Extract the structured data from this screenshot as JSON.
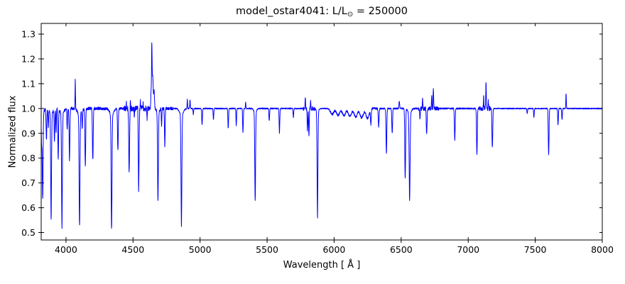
{
  "figure": {
    "title": "model_ostar4041: L/L⊙ = 250000",
    "title_parts": {
      "prefix": "model_ostar4041: L/L",
      "odot": "⊙",
      "suffix": " = 250000"
    }
  },
  "chart_data": {
    "type": "line",
    "title": "model_ostar4041: L/L⊙ = 250000",
    "xlabel": "Wavelength [ Å ]",
    "ylabel": "Normalized flux",
    "xlim": [
      3815,
      8000
    ],
    "ylim": [
      0.47,
      1.343
    ],
    "xticks": [
      4000,
      4500,
      5000,
      5500,
      6000,
      6500,
      7000,
      7500,
      8000
    ],
    "yticks": [
      0.5,
      0.6,
      0.7,
      0.8,
      0.9,
      1.0,
      1.1,
      1.2,
      1.3
    ],
    "grid": false,
    "legend": "none",
    "line_color": "#0000ff",
    "background_color": "#ffffff",
    "continuum": 1.0,
    "series_name": "normalized flux spectrum",
    "absorption_lines_format": "[wavelength_A, core_flux, sigma_A]",
    "absorption_lines": [
      [
        3818,
        0.87,
        2.5
      ],
      [
        3826,
        0.65,
        3
      ],
      [
        3854,
        0.875,
        2.8
      ],
      [
        3868,
        0.93,
        2.2
      ],
      [
        3889,
        0.575,
        3
      ],
      [
        3914,
        0.87,
        2.4
      ],
      [
        3926,
        0.9,
        2.2
      ],
      [
        3942,
        0.8,
        2.6
      ],
      [
        3970,
        0.545,
        3
      ],
      [
        4009,
        0.92,
        2.4
      ],
      [
        4026,
        0.79,
        2.8
      ],
      [
        4101,
        0.55,
        3.2
      ],
      [
        4121,
        0.93,
        2.4
      ],
      [
        4144,
        0.77,
        2.8
      ],
      [
        4200,
        0.77,
        2.8
      ],
      [
        4340,
        0.54,
        3.2
      ],
      [
        4387,
        0.83,
        2.8
      ],
      [
        4471,
        0.74,
        3
      ],
      [
        4511,
        0.95,
        2
      ],
      [
        4542,
        0.675,
        3
      ],
      [
        4605,
        0.96,
        2
      ],
      [
        4686,
        0.645,
        3
      ],
      [
        4713,
        0.93,
        2
      ],
      [
        4737,
        0.84,
        2.4
      ],
      [
        4861,
        0.55,
        3.2
      ],
      [
        4950,
        0.975,
        2
      ],
      [
        5015,
        0.935,
        2.5
      ],
      [
        5100,
        0.955,
        2.4
      ],
      [
        5210,
        0.92,
        2.5
      ],
      [
        5270,
        0.93,
        2.4
      ],
      [
        5320,
        0.905,
        2.5
      ],
      [
        5411,
        0.645,
        3
      ],
      [
        5516,
        0.95,
        2.4
      ],
      [
        5592,
        0.9,
        2.5
      ],
      [
        5696,
        0.965,
        2.4
      ],
      [
        5801,
        0.91,
        2.4
      ],
      [
        5812,
        0.89,
        2.4
      ],
      [
        5876,
        0.575,
        3
      ],
      [
        6274,
        0.94,
        3
      ],
      [
        6332,
        0.925,
        3
      ],
      [
        6390,
        0.82,
        2.8
      ],
      [
        6433,
        0.9,
        2.8
      ],
      [
        6530,
        0.72,
        3
      ],
      [
        6563,
        0.65,
        3.5
      ],
      [
        6640,
        0.96,
        2.4
      ],
      [
        6690,
        0.895,
        3
      ],
      [
        6900,
        0.87,
        2.8
      ],
      [
        7065,
        0.815,
        2.8
      ],
      [
        7180,
        0.845,
        3
      ],
      [
        7440,
        0.98,
        2.4
      ],
      [
        7490,
        0.965,
        2.4
      ],
      [
        7600,
        0.815,
        2.8
      ],
      [
        7670,
        0.935,
        2.4
      ],
      [
        7700,
        0.955,
        2.4
      ]
    ],
    "line_wings_format": "[wavelength_A, wing_flux, sigma_A]",
    "line_wings": [
      [
        3826,
        0.985,
        12
      ],
      [
        3889,
        0.98,
        12
      ],
      [
        3970,
        0.975,
        13
      ],
      [
        4101,
        0.975,
        14
      ],
      [
        4340,
        0.975,
        14
      ],
      [
        4861,
        0.975,
        14
      ],
      [
        5411,
        0.985,
        10
      ],
      [
        4686,
        0.985,
        10
      ],
      [
        5876,
        0.985,
        8
      ],
      [
        6563,
        0.98,
        12
      ]
    ],
    "emission_lines_format": "[wavelength_A, peak_flux, sigma_A]",
    "emission_lines": [
      [
        4069,
        1.115,
        1.8
      ],
      [
        4200,
        1.025,
        1.4
      ],
      [
        4450,
        1.02,
        1.4
      ],
      [
        4480,
        1.03,
        1.4
      ],
      [
        4512,
        1.035,
        1.4
      ],
      [
        4535,
        1.025,
        1.4
      ],
      [
        4555,
        1.03,
        1.4
      ],
      [
        4575,
        1.02,
        1.4
      ],
      [
        4634,
        1.06,
        2
      ],
      [
        4640,
        1.245,
        2.2
      ],
      [
        4647,
        1.13,
        3.5
      ],
      [
        4657,
        1.07,
        3
      ],
      [
        4905,
        1.04,
        1.8
      ],
      [
        4925,
        1.035,
        1.8
      ],
      [
        5340,
        1.025,
        1.8
      ],
      [
        5785,
        1.045,
        1.8
      ],
      [
        5825,
        1.03,
        1.8
      ],
      [
        6486,
        1.03,
        2.4
      ],
      [
        6660,
        1.04,
        1.8
      ],
      [
        6728,
        1.05,
        1.8
      ],
      [
        6740,
        1.085,
        2
      ],
      [
        7115,
        1.055,
        1.8
      ],
      [
        7133,
        1.11,
        2
      ],
      [
        7150,
        1.03,
        1.8
      ],
      [
        7730,
        1.06,
        1.8
      ]
    ],
    "continuum_ripples": {
      "comment": "shallow scalloped undulations between ~5985 and 6260 A",
      "start_A": 5985,
      "spacing_A": 44,
      "count": 7,
      "sigma_A": 12,
      "depths": [
        0.976,
        0.973,
        0.971,
        0.969,
        0.966,
        0.963,
        0.96
      ]
    },
    "noise_bands_format": "[from_A, to_A, amplitude_flux]",
    "noise_bands": [
      [
        3815,
        4300,
        0.006
      ],
      [
        4300,
        4430,
        0.0045
      ],
      [
        4430,
        4620,
        0.011
      ],
      [
        4620,
        4800,
        0.006
      ],
      [
        4800,
        5770,
        0.0025
      ],
      [
        5770,
        5860,
        0.008
      ],
      [
        5860,
        5960,
        0.002
      ],
      [
        5960,
        6350,
        0.0045
      ],
      [
        6350,
        6630,
        0.003
      ],
      [
        6630,
        6780,
        0.008
      ],
      [
        6780,
        7080,
        0.003
      ],
      [
        7080,
        7170,
        0.009
      ],
      [
        7170,
        8000,
        0.0022
      ]
    ]
  }
}
